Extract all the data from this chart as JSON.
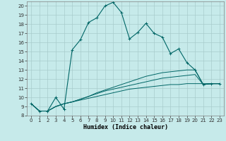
{
  "xlabel": "Humidex (Indice chaleur)",
  "bg_color": "#c6eaea",
  "grid_color": "#a8cccc",
  "line_color": "#006666",
  "xlim": [
    -0.5,
    23.5
  ],
  "ylim": [
    8,
    20.5
  ],
  "yticks": [
    8,
    9,
    10,
    11,
    12,
    13,
    14,
    15,
    16,
    17,
    18,
    19,
    20
  ],
  "xticks": [
    0,
    1,
    2,
    3,
    4,
    5,
    6,
    7,
    8,
    9,
    10,
    11,
    12,
    13,
    14,
    15,
    16,
    17,
    18,
    19,
    20,
    21,
    22,
    23
  ],
  "series_main": [
    9.3,
    8.5,
    8.5,
    10.0,
    8.7,
    15.2,
    16.3,
    18.2,
    18.7,
    20.0,
    20.4,
    19.3,
    16.4,
    17.1,
    18.1,
    17.0,
    16.6,
    14.8,
    15.3,
    13.8,
    13.0,
    11.4,
    11.5,
    11.5
  ],
  "series_line1": [
    9.3,
    8.5,
    8.5,
    9.0,
    9.3,
    9.5,
    9.7,
    9.9,
    10.1,
    10.3,
    10.5,
    10.7,
    10.9,
    11.0,
    11.1,
    11.2,
    11.3,
    11.4,
    11.4,
    11.5,
    11.5,
    11.5,
    11.5,
    11.5
  ],
  "series_line2": [
    9.3,
    8.5,
    8.5,
    9.0,
    9.3,
    9.5,
    9.8,
    10.1,
    10.4,
    10.7,
    10.9,
    11.1,
    11.3,
    11.5,
    11.7,
    11.9,
    12.1,
    12.2,
    12.3,
    12.4,
    12.5,
    11.4,
    11.5,
    11.5
  ],
  "series_line3": [
    9.3,
    8.5,
    8.5,
    9.0,
    9.3,
    9.5,
    9.8,
    10.1,
    10.5,
    10.8,
    11.1,
    11.4,
    11.7,
    12.0,
    12.3,
    12.5,
    12.7,
    12.8,
    12.9,
    13.0,
    13.0,
    11.4,
    11.5,
    11.5
  ]
}
